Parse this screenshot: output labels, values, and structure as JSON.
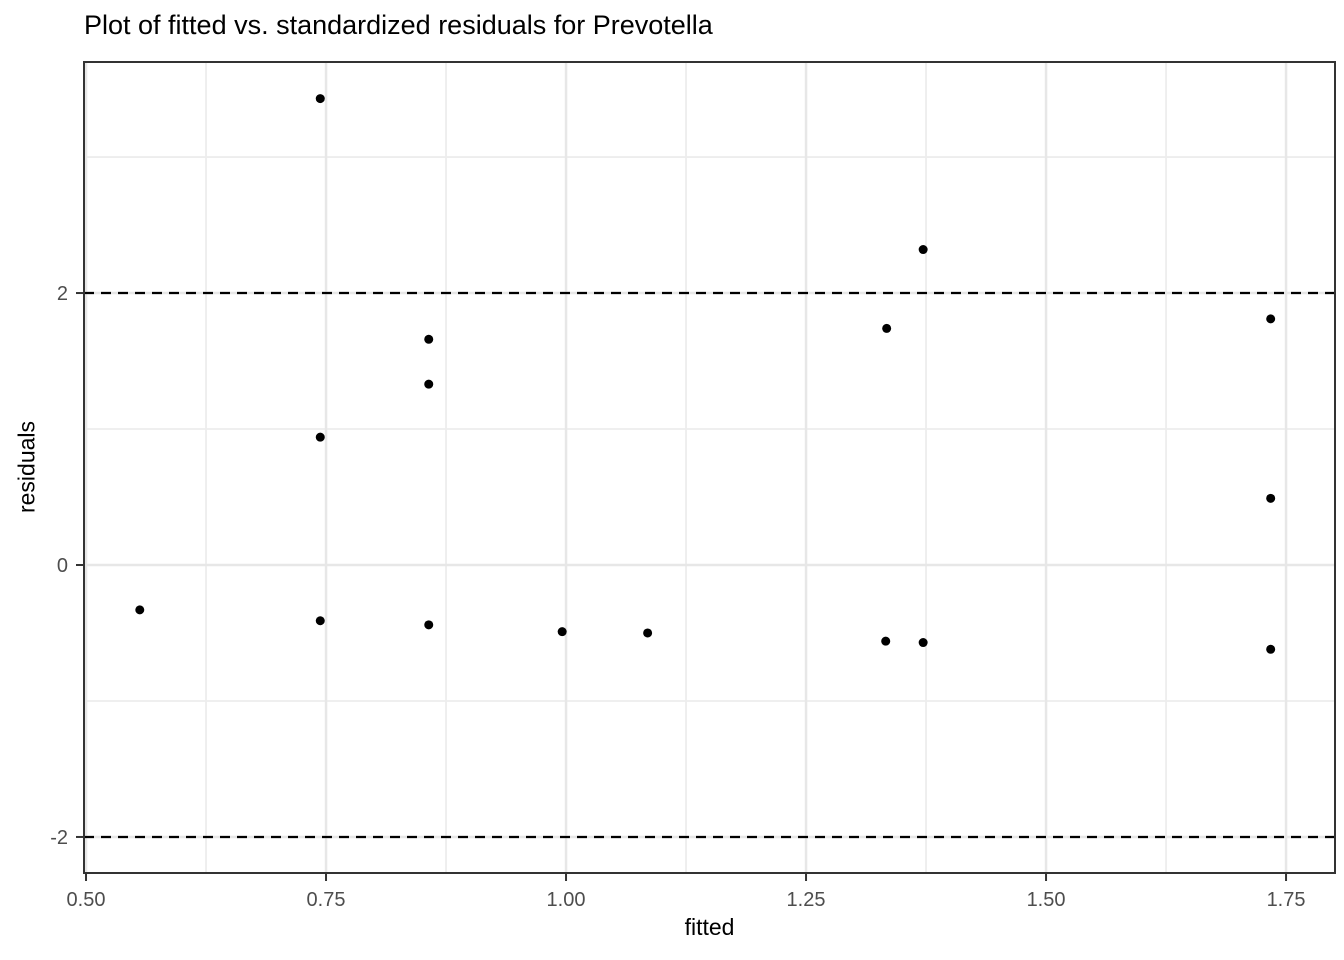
{
  "chart_data": {
    "type": "scatter",
    "title": "Plot of fitted vs. standardized residuals for Prevotella",
    "xlabel": "fitted",
    "ylabel": "residuals",
    "xlim": [
      0.4979,
      1.801
    ],
    "ylim": [
      -2.265,
      3.699
    ],
    "x_ticks": [
      0.5,
      0.75,
      1.0,
      1.25,
      1.5,
      1.75
    ],
    "x_tick_labels": [
      "0.50",
      "0.75",
      "1.00",
      "1.25",
      "1.50",
      "1.75"
    ],
    "y_ticks": [
      -2,
      0,
      2
    ],
    "y_tick_labels": [
      "-2",
      "0",
      "2"
    ],
    "grid": true,
    "legend": "none",
    "hlines": [
      {
        "y": 2,
        "style": "dashed"
      },
      {
        "y": -2,
        "style": "dashed"
      }
    ],
    "points": [
      {
        "x": 0.556,
        "y": -0.33
      },
      {
        "x": 0.744,
        "y": 3.43
      },
      {
        "x": 0.744,
        "y": 0.94
      },
      {
        "x": 0.744,
        "y": -0.41
      },
      {
        "x": 0.857,
        "y": 1.66
      },
      {
        "x": 0.857,
        "y": 1.33
      },
      {
        "x": 0.857,
        "y": -0.44
      },
      {
        "x": 0.996,
        "y": -0.49
      },
      {
        "x": 1.085,
        "y": -0.5
      },
      {
        "x": 1.334,
        "y": 1.74
      },
      {
        "x": 1.372,
        "y": 2.32
      },
      {
        "x": 1.333,
        "y": -0.56
      },
      {
        "x": 1.372,
        "y": -0.57
      },
      {
        "x": 1.734,
        "y": 1.81
      },
      {
        "x": 1.734,
        "y": 0.49
      },
      {
        "x": 1.734,
        "y": -0.62
      }
    ],
    "colors": {
      "point": "#000000",
      "grid_major": "#e7e7e7",
      "grid_minor": "#ededed",
      "panel_border": "#333333",
      "tick": "#333333",
      "tick_label": "#4d4d4d",
      "dashed_line": "#000000",
      "title_text": "#000000",
      "background": "#ffffff"
    }
  }
}
